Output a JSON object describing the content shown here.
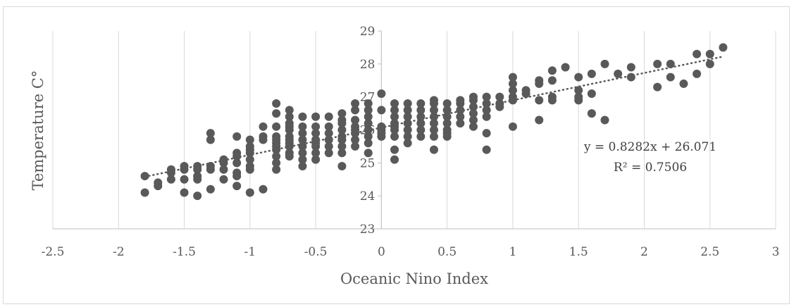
{
  "chart_data": {
    "type": "scatter",
    "title": "",
    "xlabel": "Oceanic Nino Index",
    "ylabel": "Temperature C°",
    "xlim": [
      -2.5,
      3
    ],
    "ylim": [
      23,
      29
    ],
    "x_ticks": [
      "-2.5",
      "-2",
      "-1.5",
      "-1",
      "-0.5",
      "0",
      "0.5",
      "1",
      "1.5",
      "2",
      "2.5",
      "3"
    ],
    "y_ticks": [
      "23",
      "24",
      "25",
      "26",
      "27",
      "28",
      "29"
    ],
    "grid": "vertical",
    "marker_color": "#595959",
    "trendline": {
      "type": "linear",
      "slope": 0.8282,
      "intercept": 26.071,
      "equation": "y = 0.8282x + 26.071",
      "r2_label": "R² = 0.7506",
      "style": "dotted"
    },
    "points": [
      [
        -1.8,
        24.6
      ],
      [
        -1.8,
        24.1
      ],
      [
        -1.7,
        24.3
      ],
      [
        -1.7,
        24.4
      ],
      [
        -1.6,
        24.5
      ],
      [
        -1.6,
        24.7
      ],
      [
        -1.6,
        24.8
      ],
      [
        -1.5,
        24.1
      ],
      [
        -1.5,
        24.5
      ],
      [
        -1.5,
        24.8
      ],
      [
        -1.5,
        24.9
      ],
      [
        -1.4,
        24.0
      ],
      [
        -1.4,
        24.5
      ],
      [
        -1.4,
        24.6
      ],
      [
        -1.4,
        24.8
      ],
      [
        -1.4,
        24.9
      ],
      [
        -1.3,
        24.2
      ],
      [
        -1.3,
        24.8
      ],
      [
        -1.3,
        24.9
      ],
      [
        -1.3,
        25.7
      ],
      [
        -1.3,
        25.9
      ],
      [
        -1.2,
        24.5
      ],
      [
        -1.2,
        24.8
      ],
      [
        -1.2,
        25.0
      ],
      [
        -1.2,
        25.1
      ],
      [
        -1.1,
        24.3
      ],
      [
        -1.1,
        24.6
      ],
      [
        -1.1,
        24.7
      ],
      [
        -1.1,
        25.0
      ],
      [
        -1.1,
        25.2
      ],
      [
        -1.1,
        25.3
      ],
      [
        -1.1,
        25.8
      ],
      [
        -1.0,
        24.1
      ],
      [
        -1.0,
        24.8
      ],
      [
        -1.0,
        24.9
      ],
      [
        -1.0,
        25.1
      ],
      [
        -1.0,
        25.3
      ],
      [
        -1.0,
        25.4
      ],
      [
        -1.0,
        25.5
      ],
      [
        -1.0,
        25.7
      ],
      [
        -0.9,
        24.2
      ],
      [
        -0.9,
        25.7
      ],
      [
        -0.9,
        25.8
      ],
      [
        -0.9,
        26.1
      ],
      [
        -0.8,
        24.8
      ],
      [
        -0.8,
        25.0
      ],
      [
        -0.8,
        25.2
      ],
      [
        -0.8,
        25.4
      ],
      [
        -0.8,
        25.5
      ],
      [
        -0.8,
        25.6
      ],
      [
        -0.8,
        25.7
      ],
      [
        -0.8,
        25.8
      ],
      [
        -0.8,
        26.1
      ],
      [
        -0.8,
        26.5
      ],
      [
        -0.8,
        26.8
      ],
      [
        -0.7,
        25.2
      ],
      [
        -0.7,
        25.3
      ],
      [
        -0.7,
        25.5
      ],
      [
        -0.7,
        25.6
      ],
      [
        -0.7,
        25.7
      ],
      [
        -0.7,
        25.8
      ],
      [
        -0.7,
        26.0
      ],
      [
        -0.7,
        26.1
      ],
      [
        -0.7,
        26.2
      ],
      [
        -0.7,
        26.4
      ],
      [
        -0.7,
        26.6
      ],
      [
        -0.6,
        24.9
      ],
      [
        -0.6,
        25.1
      ],
      [
        -0.6,
        25.3
      ],
      [
        -0.6,
        25.5
      ],
      [
        -0.6,
        25.7
      ],
      [
        -0.6,
        25.9
      ],
      [
        -0.6,
        26.1
      ],
      [
        -0.6,
        26.4
      ],
      [
        -0.5,
        25.1
      ],
      [
        -0.5,
        25.3
      ],
      [
        -0.5,
        25.5
      ],
      [
        -0.5,
        25.6
      ],
      [
        -0.5,
        25.7
      ],
      [
        -0.5,
        25.9
      ],
      [
        -0.5,
        26.1
      ],
      [
        -0.5,
        26.4
      ],
      [
        -0.4,
        25.3
      ],
      [
        -0.4,
        25.5
      ],
      [
        -0.4,
        25.7
      ],
      [
        -0.4,
        25.9
      ],
      [
        -0.4,
        26.1
      ],
      [
        -0.4,
        26.4
      ],
      [
        -0.3,
        24.9
      ],
      [
        -0.3,
        25.3
      ],
      [
        -0.3,
        25.5
      ],
      [
        -0.3,
        25.7
      ],
      [
        -0.3,
        25.8
      ],
      [
        -0.3,
        26.0
      ],
      [
        -0.3,
        26.2
      ],
      [
        -0.3,
        26.3
      ],
      [
        -0.3,
        26.5
      ],
      [
        -0.2,
        25.5
      ],
      [
        -0.2,
        25.7
      ],
      [
        -0.2,
        25.9
      ],
      [
        -0.2,
        26.0
      ],
      [
        -0.2,
        26.1
      ],
      [
        -0.2,
        26.3
      ],
      [
        -0.2,
        26.6
      ],
      [
        -0.2,
        26.8
      ],
      [
        -0.1,
        25.3
      ],
      [
        -0.1,
        25.6
      ],
      [
        -0.1,
        25.8
      ],
      [
        -0.1,
        26.0
      ],
      [
        -0.1,
        26.2
      ],
      [
        -0.1,
        26.4
      ],
      [
        -0.1,
        26.6
      ],
      [
        -0.1,
        26.8
      ],
      [
        0.0,
        25.8
      ],
      [
        0.0,
        25.9
      ],
      [
        0.0,
        26.0
      ],
      [
        0.0,
        26.1
      ],
      [
        0.0,
        26.6
      ],
      [
        0.0,
        27.1
      ],
      [
        0.1,
        25.1
      ],
      [
        0.1,
        25.4
      ],
      [
        0.1,
        25.8
      ],
      [
        0.1,
        26.0
      ],
      [
        0.1,
        26.1
      ],
      [
        0.1,
        26.2
      ],
      [
        0.1,
        26.4
      ],
      [
        0.1,
        26.6
      ],
      [
        0.1,
        26.8
      ],
      [
        0.2,
        25.6
      ],
      [
        0.2,
        25.8
      ],
      [
        0.2,
        26.0
      ],
      [
        0.2,
        26.2
      ],
      [
        0.2,
        26.4
      ],
      [
        0.2,
        26.6
      ],
      [
        0.2,
        26.8
      ],
      [
        0.3,
        25.8
      ],
      [
        0.3,
        26.0
      ],
      [
        0.3,
        26.2
      ],
      [
        0.3,
        26.4
      ],
      [
        0.3,
        26.6
      ],
      [
        0.3,
        26.8
      ],
      [
        0.4,
        25.4
      ],
      [
        0.4,
        25.8
      ],
      [
        0.4,
        26.0
      ],
      [
        0.4,
        26.2
      ],
      [
        0.4,
        26.4
      ],
      [
        0.4,
        26.6
      ],
      [
        0.4,
        26.8
      ],
      [
        0.4,
        26.9
      ],
      [
        0.5,
        25.8
      ],
      [
        0.5,
        25.9
      ],
      [
        0.5,
        26.0
      ],
      [
        0.5,
        26.2
      ],
      [
        0.5,
        26.4
      ],
      [
        0.5,
        26.6
      ],
      [
        0.5,
        26.8
      ],
      [
        0.6,
        26.2
      ],
      [
        0.6,
        26.4
      ],
      [
        0.6,
        26.6
      ],
      [
        0.6,
        26.8
      ],
      [
        0.6,
        26.9
      ],
      [
        0.7,
        26.1
      ],
      [
        0.7,
        26.3
      ],
      [
        0.7,
        26.5
      ],
      [
        0.7,
        26.7
      ],
      [
        0.7,
        26.9
      ],
      [
        0.7,
        27.0
      ],
      [
        0.8,
        25.4
      ],
      [
        0.8,
        25.9
      ],
      [
        0.8,
        26.4
      ],
      [
        0.8,
        26.6
      ],
      [
        0.8,
        26.8
      ],
      [
        0.8,
        27.0
      ],
      [
        0.9,
        26.7
      ],
      [
        0.9,
        26.8
      ],
      [
        0.9,
        27.0
      ],
      [
        1.0,
        26.1
      ],
      [
        1.0,
        26.9
      ],
      [
        1.0,
        27.0
      ],
      [
        1.0,
        27.2
      ],
      [
        1.0,
        27.4
      ],
      [
        1.0,
        27.6
      ],
      [
        1.1,
        27.1
      ],
      [
        1.1,
        27.2
      ],
      [
        1.2,
        26.3
      ],
      [
        1.2,
        26.9
      ],
      [
        1.2,
        27.4
      ],
      [
        1.2,
        27.5
      ],
      [
        1.3,
        26.9
      ],
      [
        1.3,
        27.0
      ],
      [
        1.3,
        27.5
      ],
      [
        1.3,
        27.8
      ],
      [
        1.4,
        27.9
      ],
      [
        1.5,
        26.9
      ],
      [
        1.5,
        27.0
      ],
      [
        1.5,
        27.2
      ],
      [
        1.5,
        27.6
      ],
      [
        1.6,
        26.5
      ],
      [
        1.6,
        27.1
      ],
      [
        1.6,
        27.7
      ],
      [
        1.7,
        26.3
      ],
      [
        1.7,
        28.0
      ],
      [
        1.8,
        27.7
      ],
      [
        1.9,
        27.6
      ],
      [
        1.9,
        27.9
      ],
      [
        2.1,
        27.3
      ],
      [
        2.1,
        28.0
      ],
      [
        2.2,
        27.6
      ],
      [
        2.2,
        28.0
      ],
      [
        2.3,
        27.4
      ],
      [
        2.4,
        27.7
      ],
      [
        2.4,
        28.3
      ],
      [
        2.5,
        28.0
      ],
      [
        2.5,
        28.3
      ],
      [
        2.6,
        28.5
      ]
    ]
  }
}
